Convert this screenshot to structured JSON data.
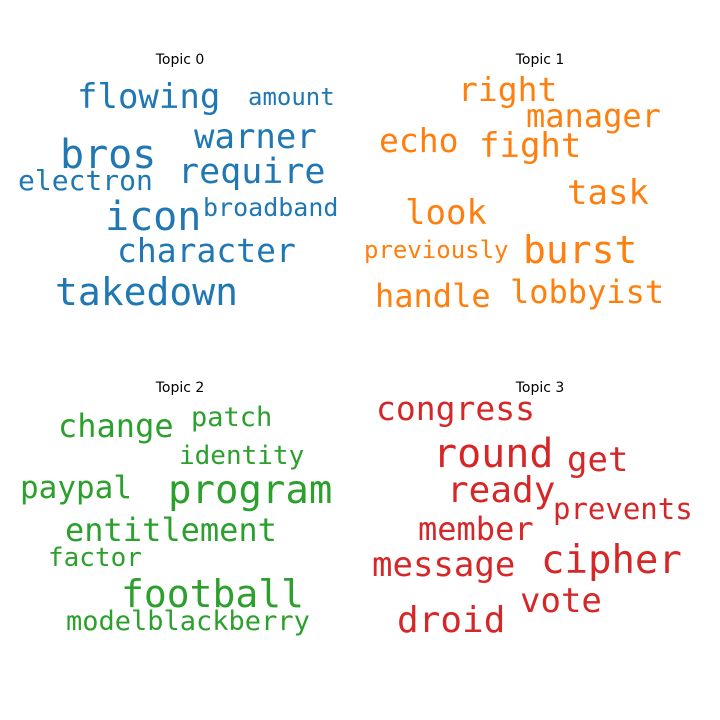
{
  "topics": [
    {
      "title": "Topic 0",
      "color": "#1f77b4",
      "words": [
        "flowing",
        "amount",
        "warner",
        "bros",
        "require",
        "electron",
        "icon",
        "broadband",
        "character",
        "takedown"
      ]
    },
    {
      "title": "Topic 1",
      "color": "#ff7f0e",
      "words": [
        "right",
        "manager",
        "echo",
        "fight",
        "task",
        "look",
        "previously",
        "burst",
        "handle",
        "lobbyist"
      ]
    },
    {
      "title": "Topic 2",
      "color": "#2ca02c",
      "words": [
        "change",
        "patch",
        "identity",
        "paypal",
        "program",
        "entitlement",
        "factor",
        "football",
        "modelblackberry"
      ]
    },
    {
      "title": "Topic 3",
      "color": "#d62728",
      "words": [
        "congress",
        "round",
        "get",
        "ready",
        "prevents",
        "member",
        "message",
        "cipher",
        "vote",
        "droid"
      ]
    }
  ]
}
